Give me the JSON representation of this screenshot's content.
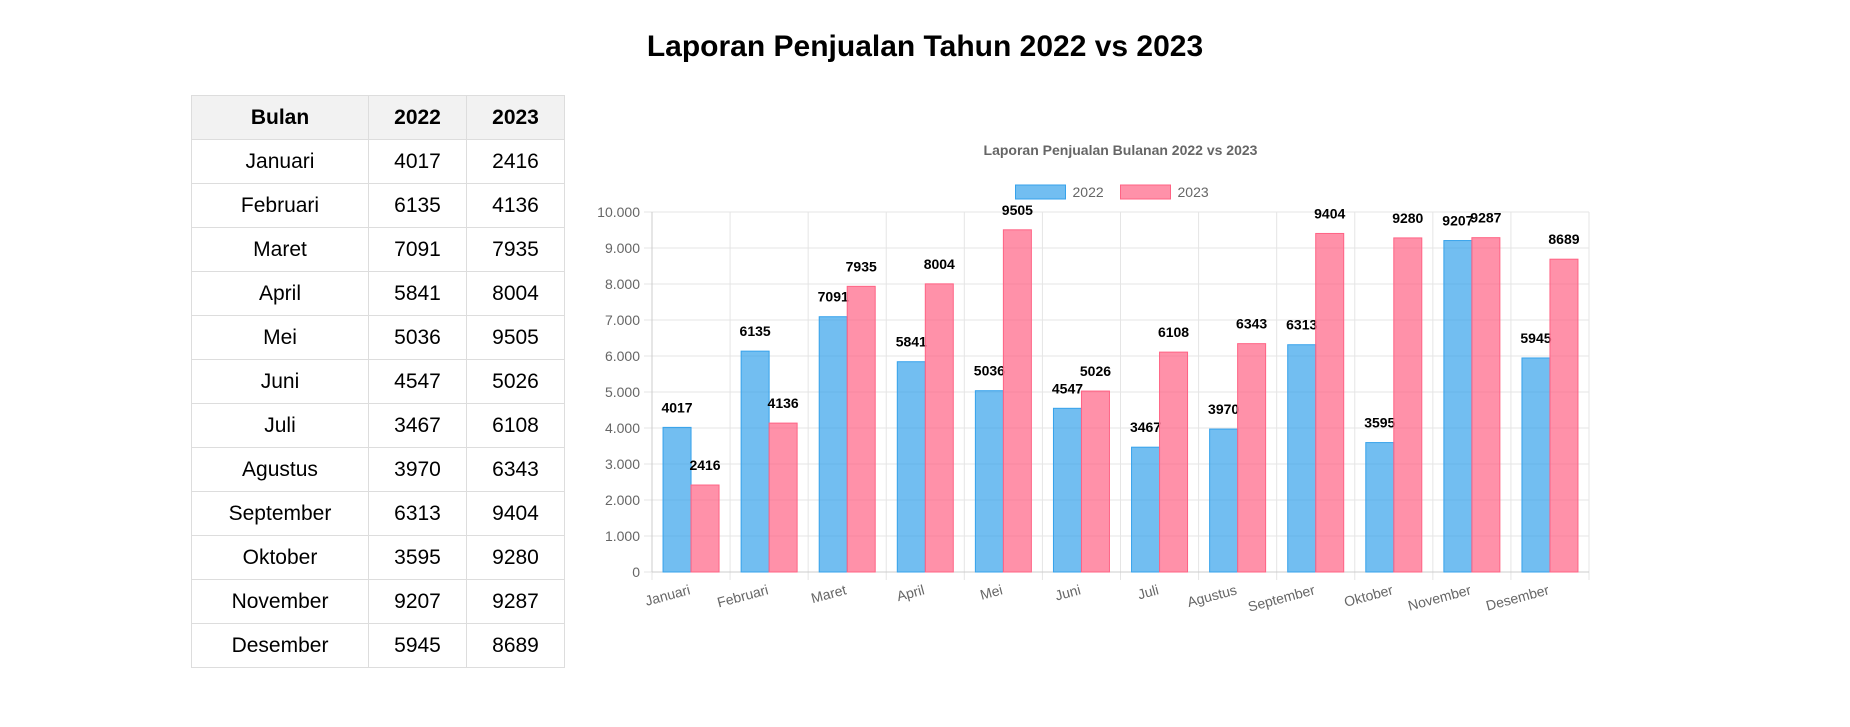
{
  "page": {
    "title": "Laporan Penjualan Tahun 2022 vs 2023"
  },
  "table": {
    "headers": [
      "Bulan",
      "2022",
      "2023"
    ],
    "rows": [
      [
        "Januari",
        "4017",
        "2416"
      ],
      [
        "Februari",
        "6135",
        "4136"
      ],
      [
        "Maret",
        "7091",
        "7935"
      ],
      [
        "April",
        "5841",
        "8004"
      ],
      [
        "Mei",
        "5036",
        "9505"
      ],
      [
        "Juni",
        "4547",
        "5026"
      ],
      [
        "Juli",
        "3467",
        "6108"
      ],
      [
        "Agustus",
        "3970",
        "6343"
      ],
      [
        "September",
        "6313",
        "9404"
      ],
      [
        "Oktober",
        "3595",
        "9280"
      ],
      [
        "November",
        "9207",
        "9287"
      ],
      [
        "Desember",
        "5945",
        "8689"
      ]
    ]
  },
  "chart_data": {
    "type": "bar",
    "title": "Laporan Penjualan Bulanan 2022 vs 2023",
    "categories": [
      "Januari",
      "Februari",
      "Maret",
      "April",
      "Mei",
      "Juni",
      "Juli",
      "Agustus",
      "September",
      "Oktober",
      "November",
      "Desember"
    ],
    "series": [
      {
        "name": "2022",
        "values": [
          4017,
          6135,
          7091,
          5841,
          5036,
          4547,
          3467,
          3970,
          6313,
          3595,
          9207,
          5945
        ],
        "color": "#36A2EB"
      },
      {
        "name": "2023",
        "values": [
          2416,
          4136,
          7935,
          8004,
          9505,
          5026,
          6108,
          6343,
          9404,
          9280,
          9287,
          8689
        ],
        "color": "#FF6384"
      }
    ],
    "ylim": [
      0,
      10000
    ],
    "yticks": [
      "0",
      "1.000",
      "2.000",
      "3.000",
      "4.000",
      "5.000",
      "6.000",
      "7.000",
      "8.000",
      "9.000",
      "10.000"
    ],
    "xlabel": "",
    "ylabel": "",
    "grid": true,
    "legend": "top",
    "data_labels": true
  }
}
